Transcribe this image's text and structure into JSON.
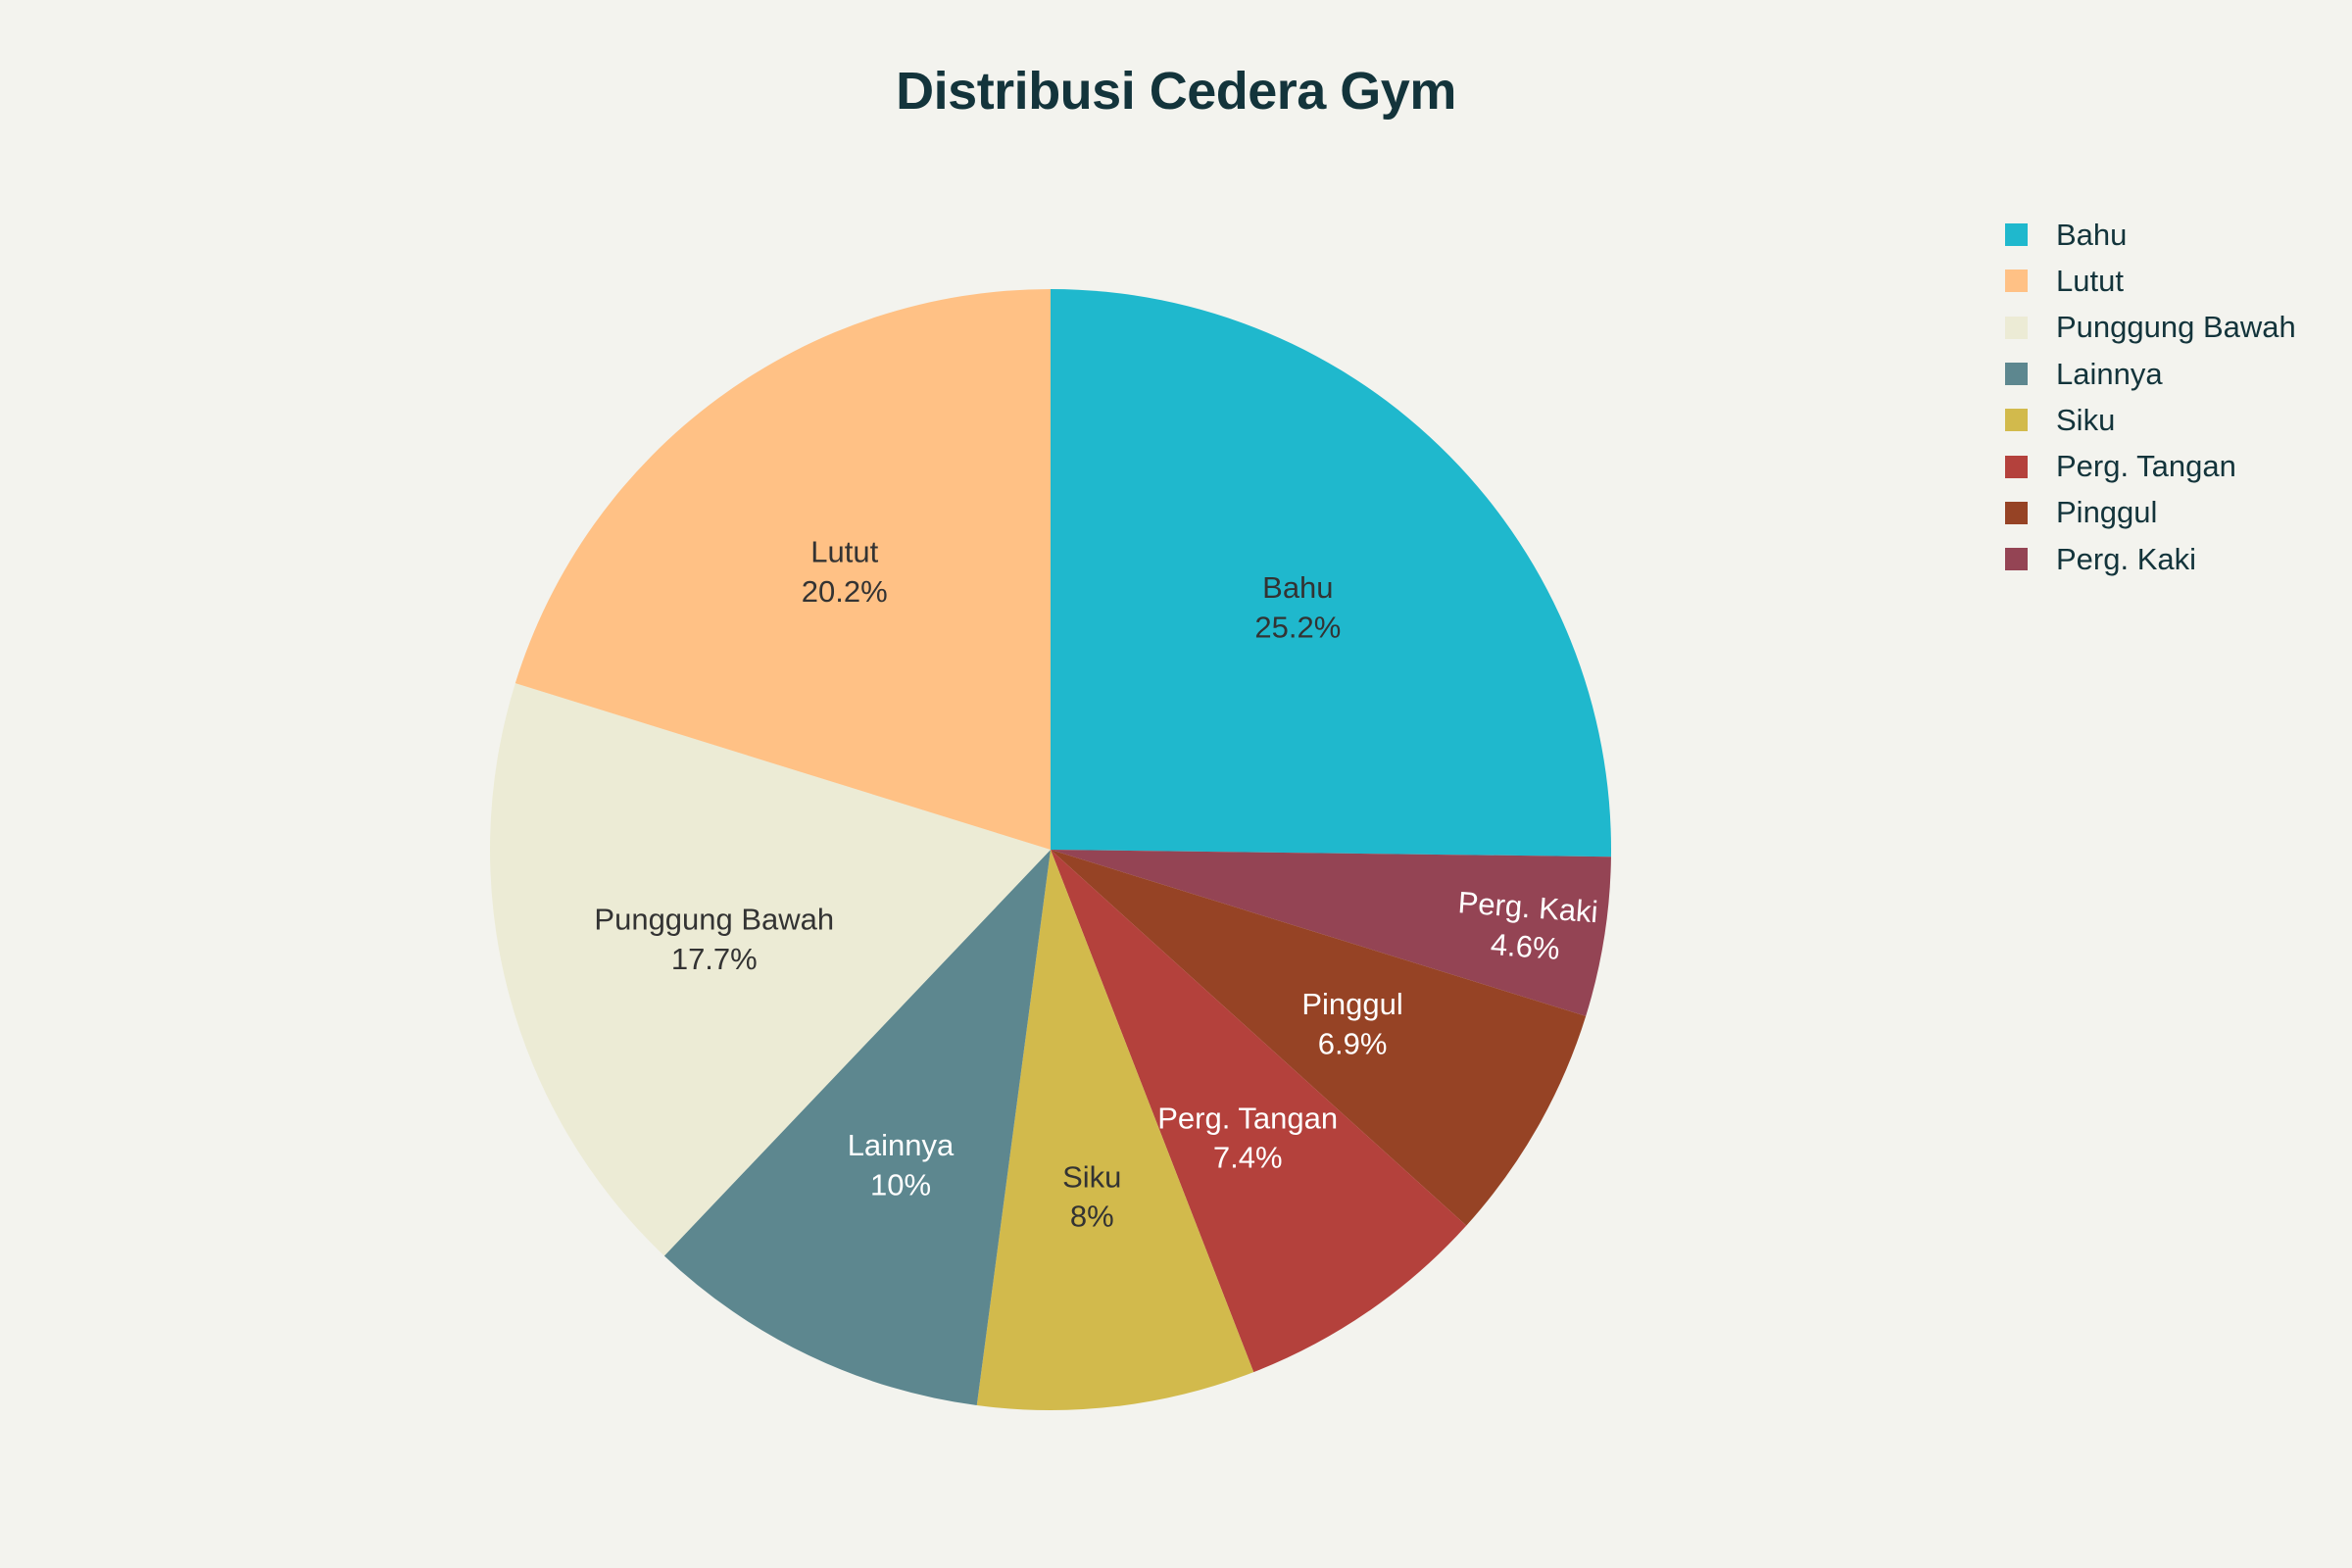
{
  "chart_data": {
    "type": "pie",
    "title": "Distribusi Cedera Gym",
    "legend_position": "top-right",
    "direction": "clockwise",
    "start_angle_deg": 0,
    "slices": [
      {
        "label": "Bahu",
        "value": 25.2,
        "display": "25.2%",
        "color": "#1FB8CD",
        "text_color": "#333333"
      },
      {
        "label": "Perg. Kaki",
        "value": 4.6,
        "display": "4.6%",
        "color": "#944454",
        "text_color": "#FFFFFF"
      },
      {
        "label": "Pinggul",
        "value": 6.9,
        "display": "6.9%",
        "color": "#964325",
        "text_color": "#FFFFFF"
      },
      {
        "label": "Perg. Tangan",
        "value": 7.4,
        "display": "7.4%",
        "color": "#B4413C",
        "text_color": "#FFFFFF"
      },
      {
        "label": "Siku",
        "value": 8.0,
        "display": "8%",
        "color": "#D2BA4C",
        "text_color": "#333333"
      },
      {
        "label": "Lainnya",
        "value": 10.0,
        "display": "10%",
        "color": "#5D878F",
        "text_color": "#FFFFFF"
      },
      {
        "label": "Punggung Bawah",
        "value": 17.7,
        "display": "17.7%",
        "color": "#ECEBD5",
        "text_color": "#333333"
      },
      {
        "label": "Lutut",
        "value": 20.2,
        "display": "20.2%",
        "color": "#FFC185",
        "text_color": "#333333"
      }
    ],
    "legend": [
      {
        "label": "Bahu",
        "color": "#1FB8CD"
      },
      {
        "label": "Lutut",
        "color": "#FFC185"
      },
      {
        "label": "Punggung Bawah",
        "color": "#ECEBD5"
      },
      {
        "label": "Lainnya",
        "color": "#5D878F"
      },
      {
        "label": "Siku",
        "color": "#D2BA4C"
      },
      {
        "label": "Perg. Tangan",
        "color": "#B4413C"
      },
      {
        "label": "Pinggul",
        "color": "#964325"
      },
      {
        "label": "Perg. Kaki",
        "color": "#944454"
      }
    ]
  }
}
